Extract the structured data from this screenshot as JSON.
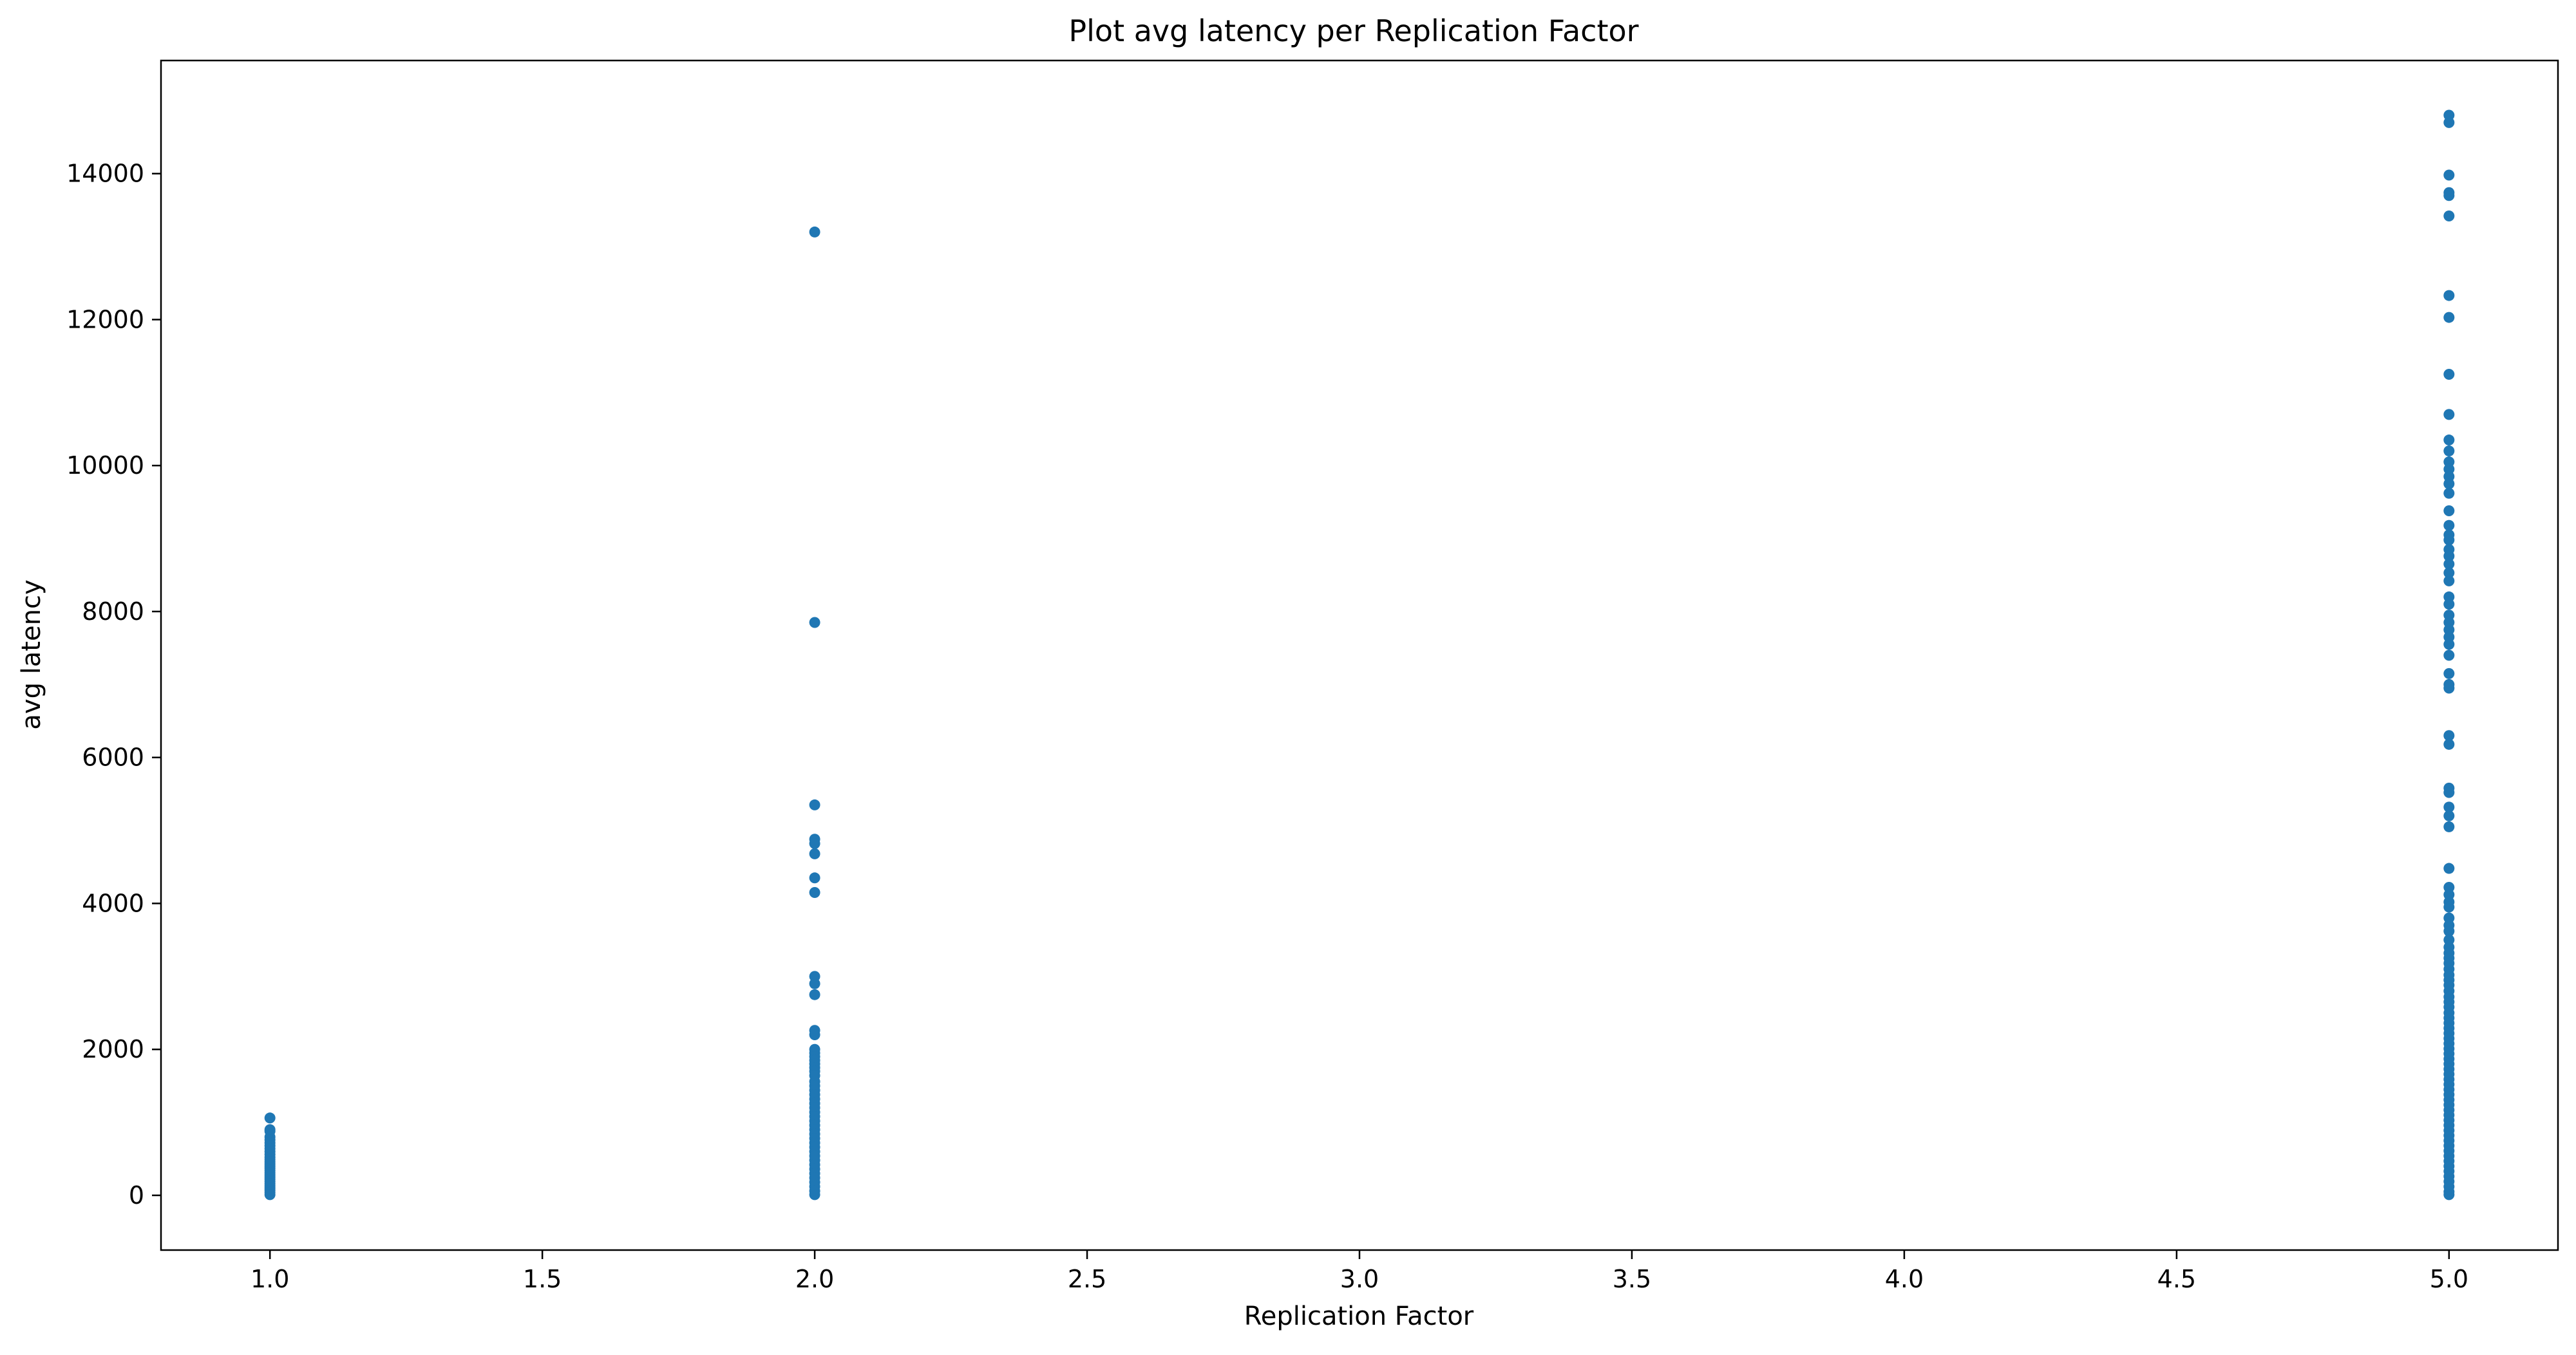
{
  "chart_data": {
    "type": "scatter",
    "title": "Plot avg latency per Replication Factor",
    "xlabel": "Replication Factor",
    "ylabel": "avg latency",
    "xlim": [
      0.8,
      5.2
    ],
    "ylim": [
      -750,
      15550
    ],
    "x_ticks": [
      1.0,
      1.5,
      2.0,
      2.5,
      3.0,
      3.5,
      4.0,
      4.5,
      5.0
    ],
    "x_tick_labels": [
      "1.0",
      "1.5",
      "2.0",
      "2.5",
      "3.0",
      "3.5",
      "4.0",
      "4.5",
      "5.0"
    ],
    "y_ticks": [
      0,
      2000,
      4000,
      6000,
      8000,
      10000,
      12000,
      14000
    ],
    "y_tick_labels": [
      "0",
      "2000",
      "4000",
      "6000",
      "8000",
      "10000",
      "12000",
      "14000"
    ],
    "grid": false,
    "marker_color": "#1f77b4",
    "series": [
      {
        "x": 1.0,
        "y": [
          1060,
          900,
          880,
          800,
          760,
          720,
          680,
          640,
          600,
          560,
          520,
          490,
          460,
          430,
          400,
          370,
          340,
          310,
          280,
          250,
          220,
          190,
          160,
          130,
          100,
          70,
          40,
          10
        ]
      },
      {
        "x": 2.0,
        "y": [
          13200,
          7850,
          5350,
          4880,
          4820,
          4680,
          4350,
          4150,
          3000,
          2900,
          2750,
          2260,
          2200,
          2000,
          1950,
          1900,
          1850,
          1800,
          1750,
          1700,
          1640,
          1560,
          1500,
          1440,
          1380,
          1320,
          1260,
          1200,
          1140,
          1080,
          1020,
          960,
          900,
          840,
          780,
          720,
          660,
          600,
          540,
          480,
          420,
          360,
          300,
          240,
          180,
          120,
          60,
          10
        ]
      },
      {
        "x": 5.0,
        "y": [
          14800,
          14700,
          13980,
          13740,
          13700,
          13420,
          12330,
          12030,
          11250,
          10700,
          10350,
          10200,
          10050,
          9950,
          9850,
          9750,
          9620,
          9380,
          9180,
          9050,
          8980,
          8850,
          8760,
          8650,
          8530,
          8420,
          8200,
          8100,
          7950,
          7850,
          7750,
          7650,
          7550,
          7400,
          7150,
          7000,
          6950,
          6300,
          6180,
          5580,
          5520,
          5320,
          5200,
          5050,
          4480,
          4220,
          4120,
          4020,
          3950,
          3800,
          3700,
          3620,
          3500,
          3400,
          3320,
          3250,
          3180,
          3100,
          3020,
          2950,
          2880,
          2800,
          2720,
          2650,
          2580,
          2500,
          2430,
          2360,
          2290,
          2220,
          2150,
          2080,
          2010,
          1940,
          1870,
          1800,
          1730,
          1660,
          1590,
          1520,
          1450,
          1380,
          1310,
          1240,
          1170,
          1100,
          1030,
          960,
          890,
          820,
          750,
          680,
          610,
          540,
          470,
          400,
          330,
          260,
          190,
          120,
          50,
          10
        ]
      }
    ]
  }
}
